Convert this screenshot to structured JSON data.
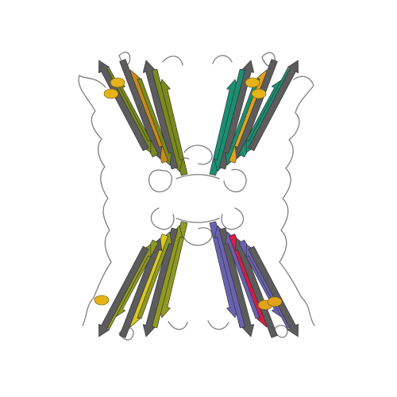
{
  "image": {
    "subject": "protein-ribbon-tetramer",
    "background": "#ffffff"
  },
  "chains": [
    {
      "id": "top-left",
      "color": "#7a8a1c",
      "accent": "#c98a1a"
    },
    {
      "id": "top-right",
      "color": "#1a8f72",
      "accent": "#e0a21a"
    },
    {
      "id": "bottom-left",
      "color": "#8f9a20",
      "accent": "#d8c81f"
    },
    {
      "id": "bottom-right",
      "color": "#6a62b0",
      "accent": "#d11f4a"
    }
  ],
  "colors": {
    "loop": "#8a8a8a",
    "helix": "#e5b21a",
    "strand_dark": "#5c5c5c"
  }
}
